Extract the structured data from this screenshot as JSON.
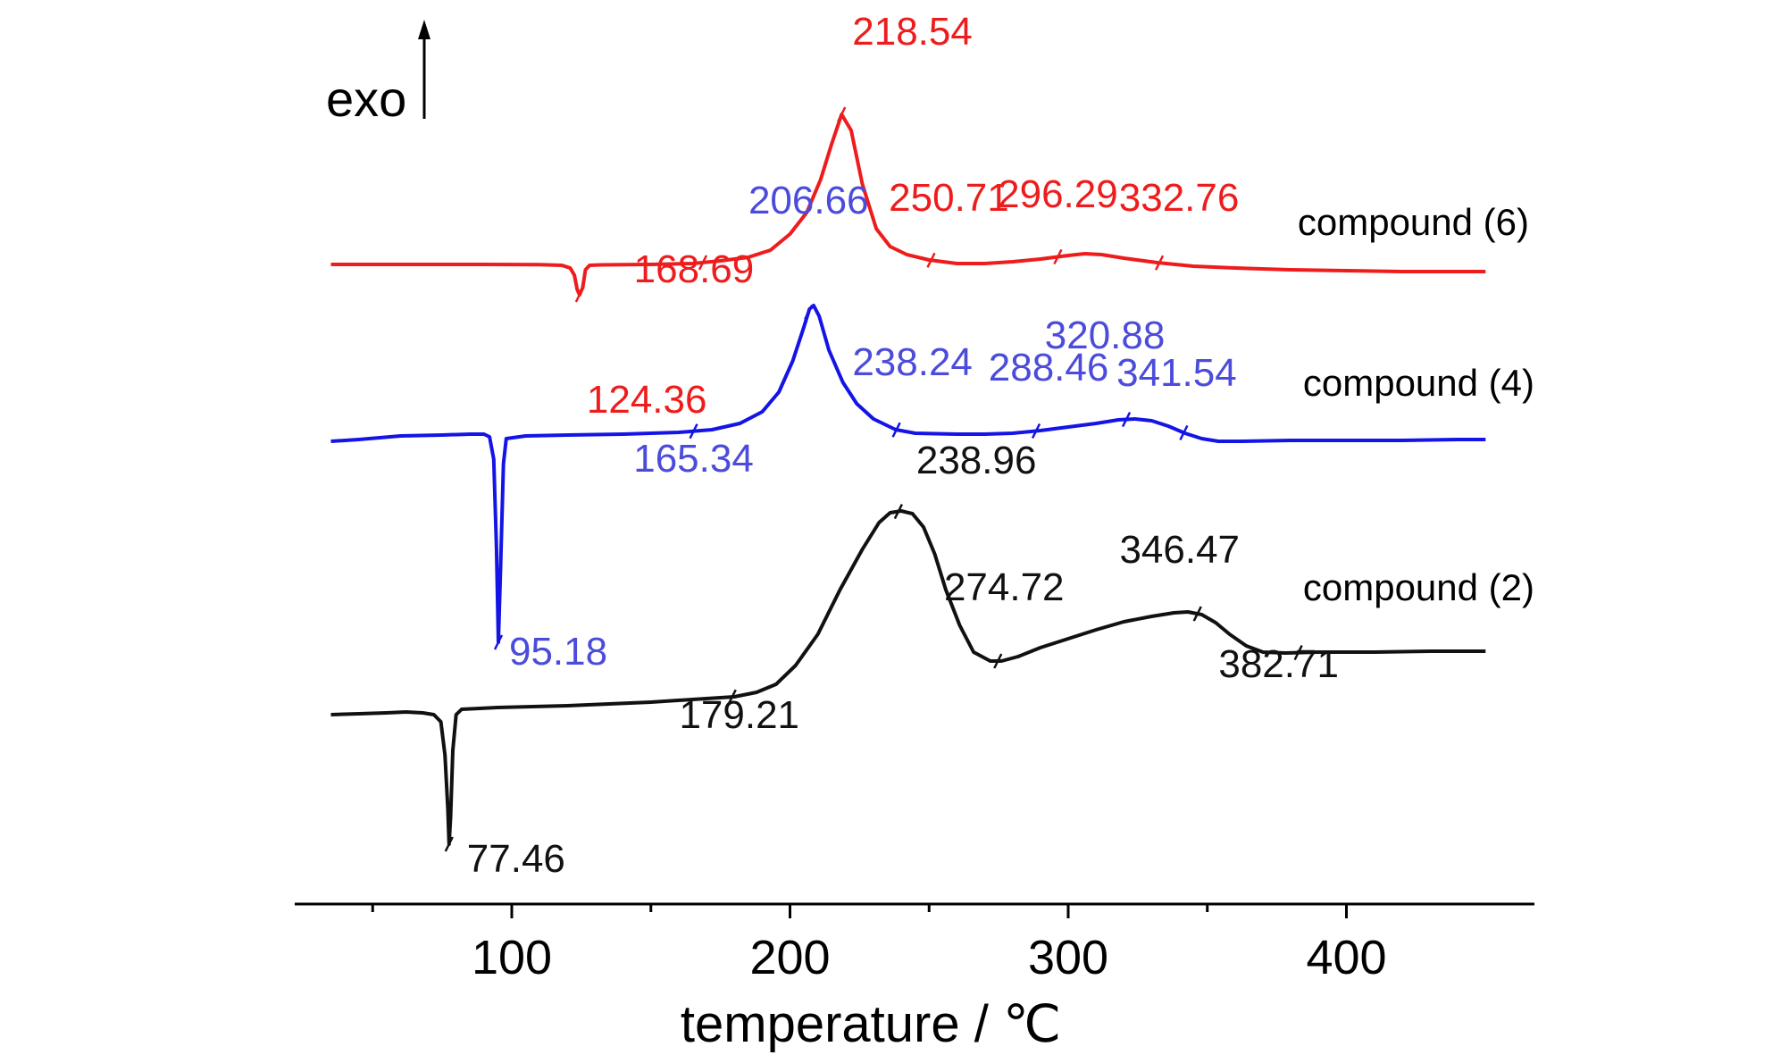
{
  "chart_data": {
    "type": "line",
    "title": "",
    "xlabel": "temperature / ℃",
    "ylabel": "exo",
    "xlim": [
      25,
      470
    ],
    "x_ticks": [
      {
        "value": 100,
        "label": "100"
      },
      {
        "value": 200,
        "label": "200"
      },
      {
        "value": 300,
        "label": "300"
      },
      {
        "value": 400,
        "label": "400"
      }
    ],
    "x_minor_ticks": [
      50,
      150,
      250,
      350
    ],
    "grid": false,
    "y_axis_ticks": false,
    "series": [
      {
        "name": "compound (6)",
        "color": "#ee1c1c",
        "points": [
          [
            35,
            0
          ],
          [
            60,
            0
          ],
          [
            90,
            0
          ],
          [
            110,
            0.3
          ],
          [
            118,
            1
          ],
          [
            121,
            4
          ],
          [
            122.5,
            12
          ],
          [
            123.5,
            28
          ],
          [
            124.36,
            34
          ],
          [
            125.5,
            26
          ],
          [
            126.5,
            6
          ],
          [
            128,
            1
          ],
          [
            132,
            0.5
          ],
          [
            150,
            0
          ],
          [
            165,
            -1
          ],
          [
            175,
            -4
          ],
          [
            185,
            -8
          ],
          [
            193,
            -16
          ],
          [
            200,
            -34
          ],
          [
            206,
            -58
          ],
          [
            211,
            -95
          ],
          [
            215,
            -135
          ],
          [
            218.54,
            -168
          ],
          [
            222,
            -150
          ],
          [
            226,
            -90
          ],
          [
            231,
            -40
          ],
          [
            236,
            -20
          ],
          [
            242,
            -11
          ],
          [
            250,
            -5
          ],
          [
            260,
            -1
          ],
          [
            270,
            -1
          ],
          [
            280,
            -3
          ],
          [
            290,
            -6
          ],
          [
            300,
            -10
          ],
          [
            306,
            -12
          ],
          [
            312,
            -11
          ],
          [
            320,
            -7
          ],
          [
            332,
            -2
          ],
          [
            345,
            2
          ],
          [
            360,
            4
          ],
          [
            380,
            6
          ],
          [
            400,
            7
          ],
          [
            420,
            8
          ],
          [
            440,
            8
          ],
          [
            450,
            8
          ]
        ],
        "annotations": [
          {
            "x": 124.36,
            "label": "124.36"
          },
          {
            "x": 168.69,
            "label": "168.69"
          },
          {
            "x": 218.54,
            "label": "218.54"
          },
          {
            "x": 250.71,
            "label": "250.71"
          },
          {
            "x": 296.29,
            "label": "296.29"
          },
          {
            "x": 332.76,
            "label": "332.76"
          }
        ]
      },
      {
        "name": "compound (4)",
        "color": "#1414e6",
        "label_color": "#4b4bdc",
        "points": [
          [
            35,
            0
          ],
          [
            45,
            -2
          ],
          [
            60,
            -6
          ],
          [
            75,
            -7
          ],
          [
            85,
            -8
          ],
          [
            90,
            -8
          ],
          [
            92,
            -5
          ],
          [
            93.5,
            20
          ],
          [
            94.5,
            120
          ],
          [
            95.18,
            225
          ],
          [
            96,
            140
          ],
          [
            97,
            25
          ],
          [
            98,
            -3
          ],
          [
            105,
            -6
          ],
          [
            120,
            -7
          ],
          [
            140,
            -8
          ],
          [
            160,
            -10
          ],
          [
            172,
            -13
          ],
          [
            182,
            -20
          ],
          [
            190,
            -33
          ],
          [
            196,
            -55
          ],
          [
            201,
            -90
          ],
          [
            205,
            -128
          ],
          [
            207,
            -148
          ],
          [
            208.5,
            -152
          ],
          [
            210.5,
            -140
          ],
          [
            214,
            -102
          ],
          [
            219,
            -66
          ],
          [
            224,
            -42
          ],
          [
            230,
            -25
          ],
          [
            238,
            -13
          ],
          [
            245,
            -9
          ],
          [
            260,
            -8
          ],
          [
            270,
            -8
          ],
          [
            280,
            -9
          ],
          [
            290,
            -12
          ],
          [
            300,
            -16
          ],
          [
            310,
            -20
          ],
          [
            318,
            -24
          ],
          [
            324,
            -25
          ],
          [
            330,
            -23
          ],
          [
            336,
            -17
          ],
          [
            342,
            -9
          ],
          [
            348,
            -3
          ],
          [
            354,
            0
          ],
          [
            362,
            0
          ],
          [
            380,
            -1
          ],
          [
            400,
            -1
          ],
          [
            420,
            -1
          ],
          [
            440,
            -2
          ],
          [
            450,
            -2
          ]
        ],
        "annotations": [
          {
            "x": 95.18,
            "label": "95.18"
          },
          {
            "x": 165.34,
            "label": "165.34"
          },
          {
            "x": 206.66,
            "label": "206.66"
          },
          {
            "x": 238.24,
            "label": "238.24"
          },
          {
            "x": 288.46,
            "label": "288.46"
          },
          {
            "x": 320.88,
            "label": "320.88"
          },
          {
            "x": 341.54,
            "label": "341.54"
          }
        ]
      },
      {
        "name": "compound (2)",
        "color": "#111111",
        "points": [
          [
            35,
            0
          ],
          [
            45,
            -1
          ],
          [
            55,
            -2
          ],
          [
            62,
            -3
          ],
          [
            68,
            -2
          ],
          [
            72,
            0
          ],
          [
            74.5,
            8
          ],
          [
            76,
            45
          ],
          [
            77,
            105
          ],
          [
            77.46,
            145
          ],
          [
            78,
            115
          ],
          [
            78.8,
            40
          ],
          [
            80,
            0
          ],
          [
            82,
            -6
          ],
          [
            95,
            -8
          ],
          [
            120,
            -10
          ],
          [
            150,
            -14
          ],
          [
            170,
            -18
          ],
          [
            180,
            -20
          ],
          [
            188,
            -25
          ],
          [
            195,
            -34
          ],
          [
            202,
            -55
          ],
          [
            210,
            -90
          ],
          [
            218,
            -140
          ],
          [
            226,
            -185
          ],
          [
            232,
            -215
          ],
          [
            236,
            -226
          ],
          [
            240,
            -228
          ],
          [
            244,
            -225
          ],
          [
            248,
            -210
          ],
          [
            252,
            -180
          ],
          [
            256,
            -140
          ],
          [
            261,
            -100
          ],
          [
            266,
            -70
          ],
          [
            272,
            -60
          ],
          [
            276,
            -60
          ],
          [
            282,
            -65
          ],
          [
            290,
            -75
          ],
          [
            300,
            -85
          ],
          [
            310,
            -95
          ],
          [
            320,
            -104
          ],
          [
            330,
            -110
          ],
          [
            338,
            -114
          ],
          [
            343,
            -115
          ],
          [
            348,
            -112
          ],
          [
            353,
            -103
          ],
          [
            358,
            -90
          ],
          [
            364,
            -77
          ],
          [
            370,
            -70
          ],
          [
            378,
            -69
          ],
          [
            390,
            -70
          ],
          [
            410,
            -70
          ],
          [
            430,
            -71
          ],
          [
            450,
            -71
          ]
        ],
        "annotations": [
          {
            "x": 77.46,
            "label": "77.46"
          },
          {
            "x": 179.21,
            "label": "179.21"
          },
          {
            "x": 238.96,
            "label": "238.96"
          },
          {
            "x": 274.72,
            "label": "274.72"
          },
          {
            "x": 346.47,
            "label": "346.47"
          },
          {
            "x": 382.71,
            "label": "382.71"
          }
        ]
      }
    ]
  }
}
